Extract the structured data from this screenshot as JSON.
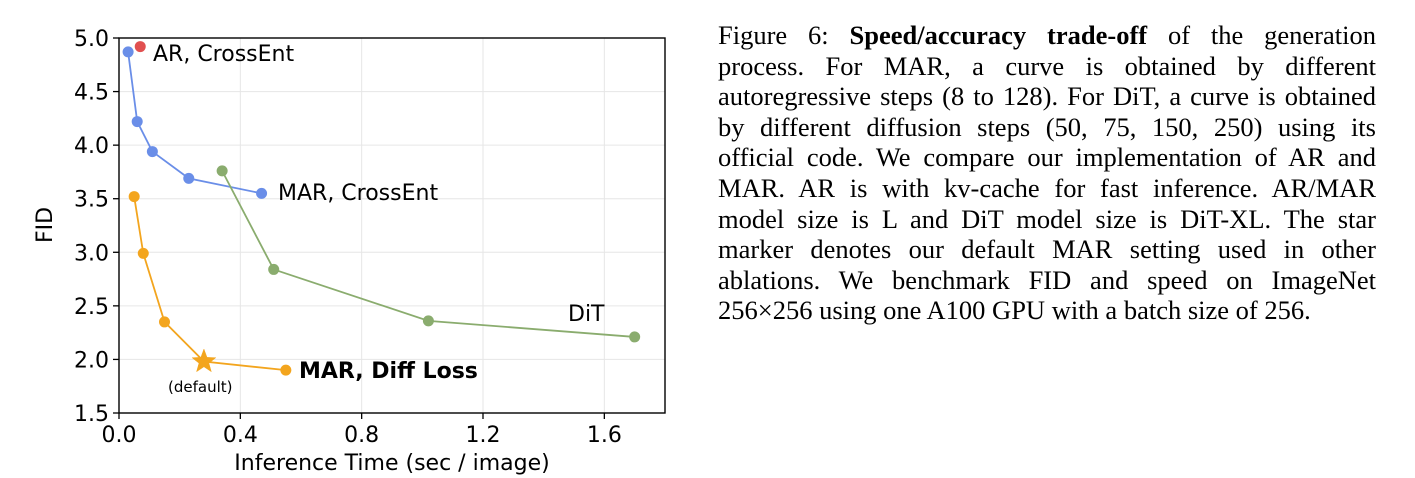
{
  "chart_data": {
    "type": "line",
    "xlabel": "Inference Time (sec / image)",
    "ylabel": "FID",
    "xlim": [
      0.0,
      1.8
    ],
    "ylim": [
      1.5,
      5.0
    ],
    "xticks": [
      "0.0",
      "0.4",
      "0.8",
      "1.2",
      "1.6"
    ],
    "yticks": [
      "1.5",
      "2.0",
      "2.5",
      "3.0",
      "3.5",
      "4.0",
      "4.5",
      "5.0"
    ],
    "grid": true,
    "series": [
      {
        "name": "AR, CrossEnt",
        "color": "#e15050",
        "x": [
          0.07
        ],
        "y": [
          4.92
        ]
      },
      {
        "name": "MAR, CrossEnt",
        "color": "#6a8ee8",
        "x": [
          0.03,
          0.06,
          0.11,
          0.23,
          0.47
        ],
        "y": [
          4.87,
          4.22,
          3.94,
          3.69,
          3.55
        ]
      },
      {
        "name": "DiT",
        "color": "#8aac6e",
        "x": [
          0.34,
          0.51,
          1.02,
          1.7
        ],
        "y": [
          3.76,
          2.84,
          2.36,
          2.21
        ]
      },
      {
        "name": "MAR, Diff Loss",
        "color": "#f3a51e",
        "x": [
          0.05,
          0.08,
          0.15,
          0.28,
          0.55
        ],
        "y": [
          3.52,
          2.99,
          2.35,
          1.98,
          1.9
        ],
        "star_index": 3,
        "annotation": "(default)"
      }
    ]
  },
  "caption": {
    "label": "Figure 6:",
    "title": "Speed/accuracy trade-off",
    "text": "of the generation process. For MAR, a curve is obtained by different autoregressive steps (8 to 128). For DiT, a curve is obtained by different diffusion steps (50, 75, 150, 250) using its official code.  We compare our implementation of AR and MAR. AR is with kv-cache for fast inference. AR/MAR model size is L and DiT model size is DiT-XL. The star marker denotes our default MAR setting used in other ablations. We benchmark FID and speed on ImageNet 256×256 using one A100 GPU with a batch size of 256."
  }
}
